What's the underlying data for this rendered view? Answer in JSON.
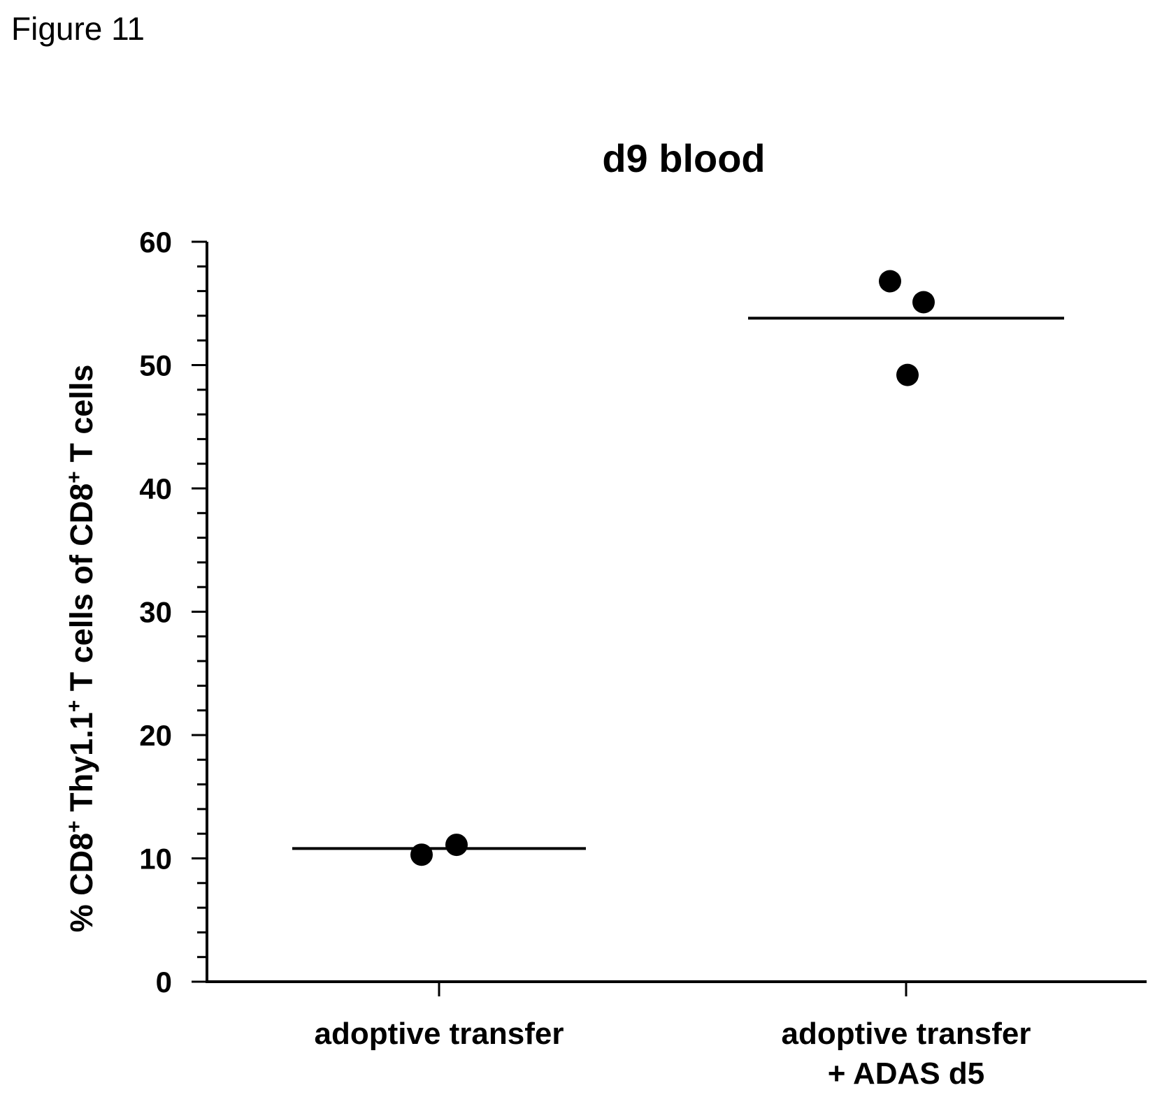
{
  "figure": {
    "label": "Figure 11"
  },
  "chart_data": {
    "type": "scatter",
    "title": "d9 blood",
    "ylabel_parts": {
      "a": "% CD8",
      "a_sup": "+",
      "b": " Thy1.1",
      "b_sup": "+",
      "c": " T cells of CD8",
      "c_sup": "+",
      "d": " T cells"
    },
    "ylim": [
      0,
      60
    ],
    "yticks": [
      0,
      10,
      20,
      30,
      40,
      50,
      60
    ],
    "yminor_step": 2,
    "categories": [
      {
        "line1": "adoptive transfer",
        "line2": ""
      },
      {
        "line1": "adoptive transfer",
        "line2": "+ ADAS d5"
      }
    ],
    "groups": [
      {
        "category_index": 0,
        "mean": 10.8,
        "points": [
          10.3,
          11.1
        ]
      },
      {
        "category_index": 1,
        "mean": 53.8,
        "points": [
          56.8,
          55.1,
          49.2
        ]
      }
    ],
    "grid": false,
    "legend": "none",
    "colors": {
      "marks": "#000000",
      "axes": "#000000"
    }
  }
}
